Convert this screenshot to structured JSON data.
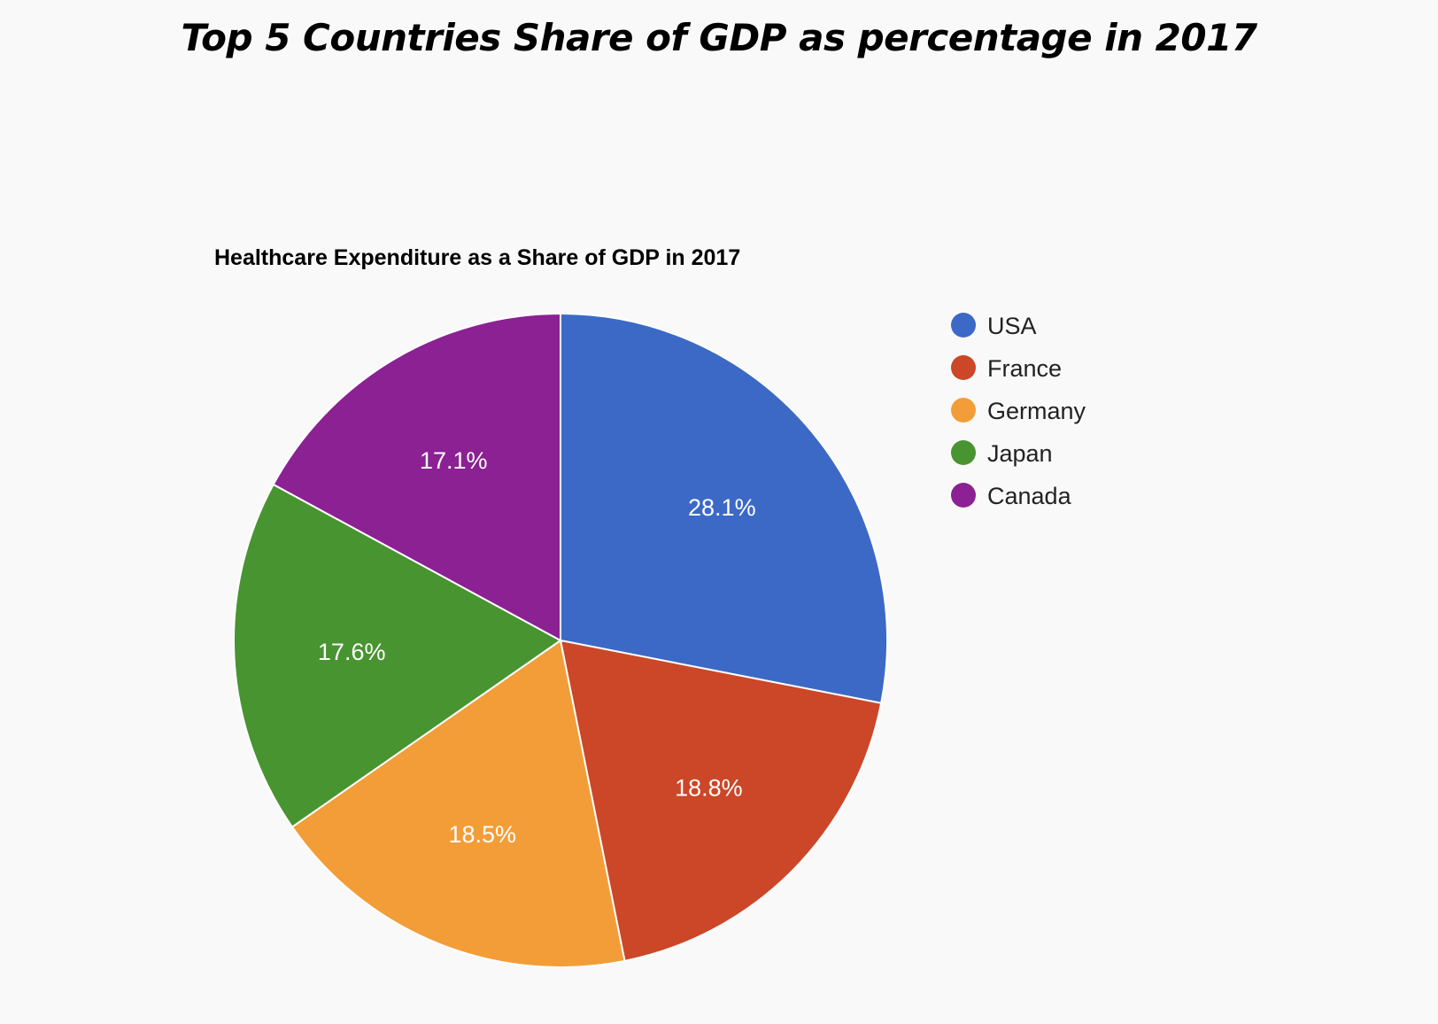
{
  "page": {
    "title": "Top 5 Countries Share of GDP as percentage in 2017"
  },
  "chart_data": {
    "type": "pie",
    "title": "Healthcare Expenditure as a Share of GDP in 2017",
    "categories": [
      "USA",
      "France",
      "Germany",
      "Japan",
      "Canada"
    ],
    "values": [
      28.1,
      18.8,
      18.5,
      17.6,
      17.1
    ],
    "data_labels": [
      "28.1%",
      "18.8%",
      "18.5%",
      "17.6%",
      "17.1%"
    ],
    "colors": [
      "#3c69c6",
      "#cc4628",
      "#f39d38",
      "#489431",
      "#8b2193"
    ],
    "legend_position": "right",
    "start_angle": "12 o'clock, clockwise"
  }
}
